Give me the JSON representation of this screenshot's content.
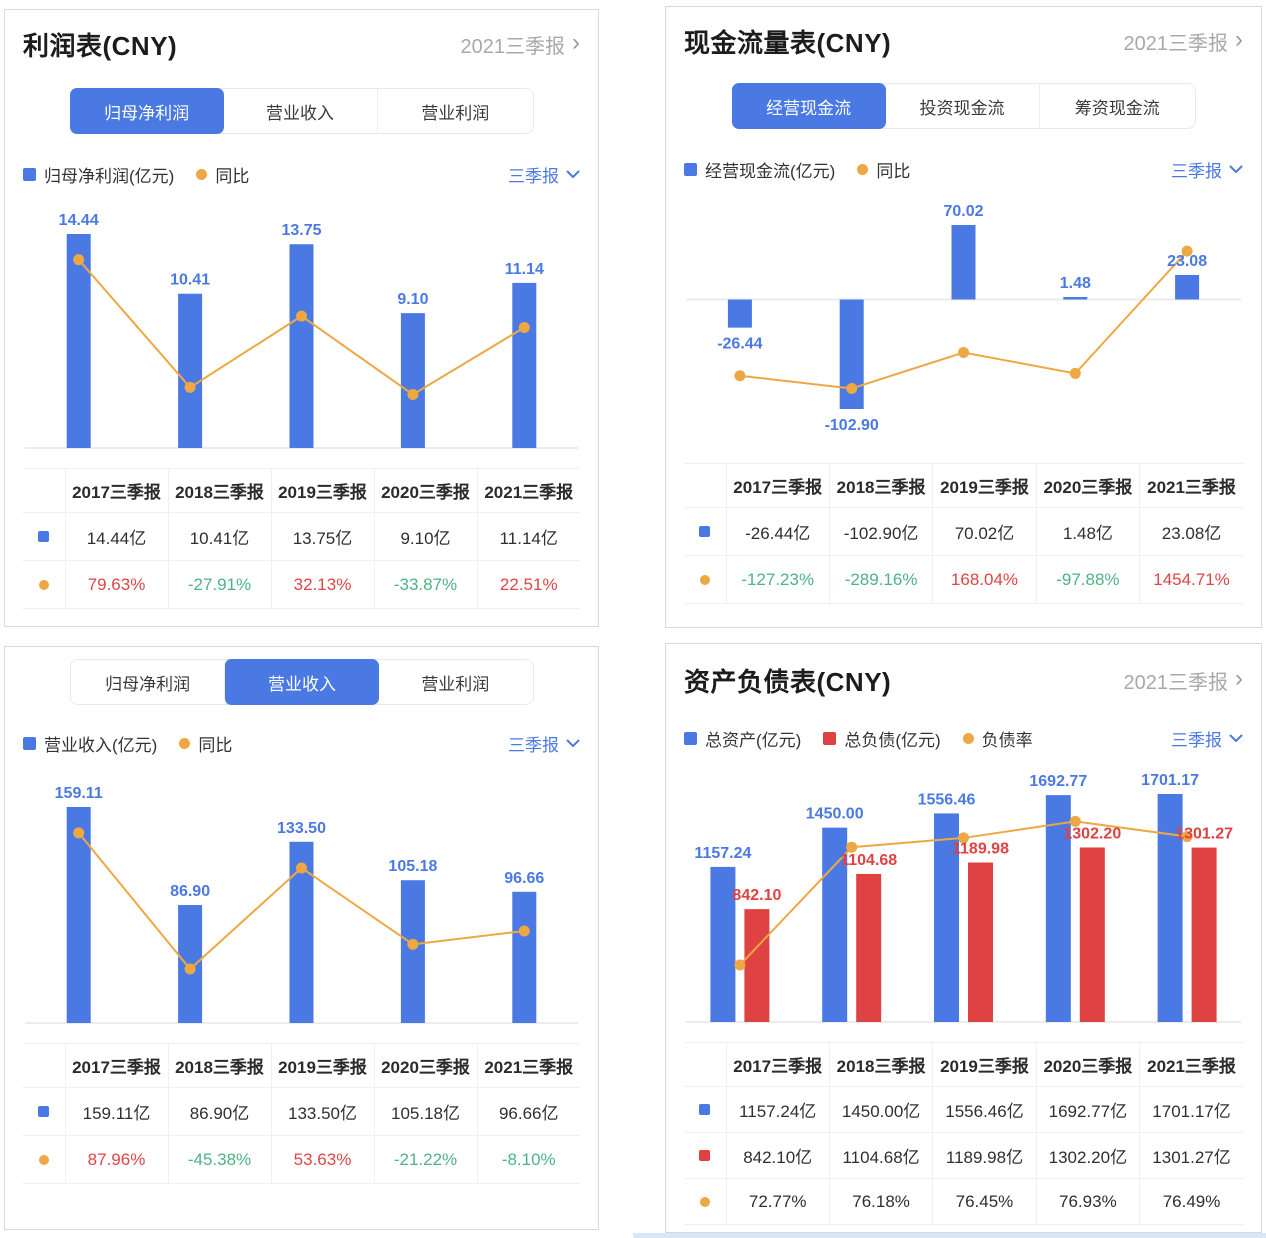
{
  "palette": {
    "blue": "#4b79e3",
    "red_bar": "#df4242",
    "orange": "#eda843",
    "up_color": "#e04444",
    "down_color": "#4fb286"
  },
  "panels": [
    {
      "title": "利润表(CNY)",
      "period_link": "2021三季报",
      "period_select": "三季报",
      "tabs": [
        {
          "label": "归母净利润",
          "active": true
        },
        {
          "label": "营业收入",
          "active": false
        },
        {
          "label": "营业利润",
          "active": false
        }
      ],
      "legend": [
        {
          "label": "归母净利润(亿元)",
          "marker": "square",
          "color": "#4b79e3"
        },
        {
          "label": "同比",
          "marker": "dot",
          "color": "#eda843"
        }
      ],
      "chart_data": {
        "type": "bar-line",
        "categories": [
          "2017三季报",
          "2018三季报",
          "2019三季报",
          "2020三季报",
          "2021三季报"
        ],
        "bars": {
          "name": "归母净利润(亿元)",
          "color": "#4b79e3",
          "values": [
            14.44,
            10.41,
            13.75,
            9.1,
            11.14
          ]
        },
        "line": {
          "name": "同比(%)",
          "color": "#eda843",
          "values": [
            79.63,
            -27.91,
            32.13,
            -33.87,
            22.51
          ]
        }
      },
      "table": {
        "headers": [
          "2017三季报",
          "2018三季报",
          "2019三季报",
          "2020三季报",
          "2021三季报"
        ],
        "rows": [
          {
            "marker": "square",
            "marker_color": "#4b79e3",
            "cells": [
              {
                "t": "14.44亿"
              },
              {
                "t": "10.41亿"
              },
              {
                "t": "13.75亿"
              },
              {
                "t": "9.10亿"
              },
              {
                "t": "11.14亿"
              }
            ]
          },
          {
            "marker": "dot",
            "marker_color": "#eda843",
            "cells": [
              {
                "t": "79.63%",
                "c": "up"
              },
              {
                "t": "-27.91%",
                "c": "down"
              },
              {
                "t": "32.13%",
                "c": "up"
              },
              {
                "t": "-33.87%",
                "c": "down"
              },
              {
                "t": "22.51%",
                "c": "up"
              }
            ]
          }
        ]
      }
    },
    {
      "title": "现金流量表(CNY)",
      "period_link": "2021三季报",
      "period_select": "三季报",
      "tabs": [
        {
          "label": "经营现金流",
          "active": true
        },
        {
          "label": "投资现金流",
          "active": false
        },
        {
          "label": "筹资现金流",
          "active": false
        }
      ],
      "legend": [
        {
          "label": "经营现金流(亿元)",
          "marker": "square",
          "color": "#4b79e3"
        },
        {
          "label": "同比",
          "marker": "dot",
          "color": "#eda843"
        }
      ],
      "chart_data": {
        "type": "bar-line",
        "categories": [
          "2017三季报",
          "2018三季报",
          "2019三季报",
          "2020三季报",
          "2021三季报"
        ],
        "bars": {
          "name": "经营现金流(亿元)",
          "color": "#4b79e3",
          "values": [
            -26.44,
            -102.9,
            70.02,
            1.48,
            23.08
          ]
        },
        "line": {
          "name": "同比(%)",
          "color": "#eda843",
          "values": [
            -127.23,
            -289.16,
            168.04,
            -97.88,
            1454.71
          ]
        }
      },
      "table": {
        "headers": [
          "2017三季报",
          "2018三季报",
          "2019三季报",
          "2020三季报",
          "2021三季报"
        ],
        "rows": [
          {
            "marker": "square",
            "marker_color": "#4b79e3",
            "cells": [
              {
                "t": "-26.44亿"
              },
              {
                "t": "-102.90亿"
              },
              {
                "t": "70.02亿"
              },
              {
                "t": "1.48亿"
              },
              {
                "t": "23.08亿"
              }
            ]
          },
          {
            "marker": "dot",
            "marker_color": "#eda843",
            "cells": [
              {
                "t": "-127.23%",
                "c": "down"
              },
              {
                "t": "-289.16%",
                "c": "down"
              },
              {
                "t": "168.04%",
                "c": "up"
              },
              {
                "t": "-97.88%",
                "c": "down"
              },
              {
                "t": "1454.71%",
                "c": "up"
              }
            ]
          }
        ]
      }
    },
    {
      "period_select": "三季报",
      "tabs": [
        {
          "label": "归母净利润",
          "active": false
        },
        {
          "label": "营业收入",
          "active": true
        },
        {
          "label": "营业利润",
          "active": false
        }
      ],
      "legend": [
        {
          "label": "营业收入(亿元)",
          "marker": "square",
          "color": "#4b79e3"
        },
        {
          "label": "同比",
          "marker": "dot",
          "color": "#eda843"
        }
      ],
      "chart_data": {
        "type": "bar-line",
        "categories": [
          "2017三季报",
          "2018三季报",
          "2019三季报",
          "2020三季报",
          "2021三季报"
        ],
        "bars": {
          "name": "营业收入(亿元)",
          "color": "#4b79e3",
          "values": [
            159.11,
            86.9,
            133.5,
            105.18,
            96.66
          ]
        },
        "line": {
          "name": "同比(%)",
          "color": "#eda843",
          "values": [
            87.96,
            -45.38,
            53.63,
            -21.22,
            -8.1
          ]
        }
      },
      "table": {
        "headers": [
          "2017三季报",
          "2018三季报",
          "2019三季报",
          "2020三季报",
          "2021三季报"
        ],
        "rows": [
          {
            "marker": "square",
            "marker_color": "#4b79e3",
            "cells": [
              {
                "t": "159.11亿"
              },
              {
                "t": "86.90亿"
              },
              {
                "t": "133.50亿"
              },
              {
                "t": "105.18亿"
              },
              {
                "t": "96.66亿"
              }
            ]
          },
          {
            "marker": "dot",
            "marker_color": "#eda843",
            "cells": [
              {
                "t": "87.96%",
                "c": "up"
              },
              {
                "t": "-45.38%",
                "c": "down"
              },
              {
                "t": "53.63%",
                "c": "up"
              },
              {
                "t": "-21.22%",
                "c": "down"
              },
              {
                "t": "-8.10%",
                "c": "down"
              }
            ]
          }
        ]
      }
    },
    {
      "title": "资产负债表(CNY)",
      "period_link": "2021三季报",
      "period_select": "三季报",
      "legend": [
        {
          "label": "总资产(亿元)",
          "marker": "square",
          "color": "#4b79e3"
        },
        {
          "label": "总负债(亿元)",
          "marker": "square",
          "color": "#df4242"
        },
        {
          "label": "负债率",
          "marker": "dot",
          "color": "#eda843"
        }
      ],
      "chart_data": {
        "type": "grouped-bar-line",
        "categories": [
          "2017三季报",
          "2018三季报",
          "2019三季报",
          "2020三季报",
          "2021三季报"
        ],
        "series": [
          {
            "name": "总资产(亿元)",
            "color": "#4b79e3",
            "values": [
              1157.24,
              1450.0,
              1556.46,
              1692.77,
              1701.17
            ]
          },
          {
            "name": "总负债(亿元)",
            "color": "#df4242",
            "values": [
              842.1,
              1104.68,
              1189.98,
              1302.2,
              1301.27
            ]
          }
        ],
        "line": {
          "name": "负债率(%)",
          "color": "#eda843",
          "values": [
            72.77,
            76.18,
            76.45,
            76.93,
            76.49
          ]
        }
      },
      "table": {
        "headers": [
          "2017三季报",
          "2018三季报",
          "2019三季报",
          "2020三季报",
          "2021三季报"
        ],
        "rows": [
          {
            "marker": "square",
            "marker_color": "#4b79e3",
            "cells": [
              {
                "t": "1157.24亿"
              },
              {
                "t": "1450.00亿"
              },
              {
                "t": "1556.46亿"
              },
              {
                "t": "1692.77亿"
              },
              {
                "t": "1701.17亿"
              }
            ]
          },
          {
            "marker": "square",
            "marker_color": "#df4242",
            "cells": [
              {
                "t": "842.10亿"
              },
              {
                "t": "1104.68亿"
              },
              {
                "t": "1189.98亿"
              },
              {
                "t": "1302.20亿"
              },
              {
                "t": "1301.27亿"
              }
            ]
          },
          {
            "marker": "dot",
            "marker_color": "#eda843",
            "cells": [
              {
                "t": "72.77%"
              },
              {
                "t": "76.18%"
              },
              {
                "t": "76.45%"
              },
              {
                "t": "76.93%"
              },
              {
                "t": "76.49%"
              }
            ]
          }
        ]
      }
    }
  ]
}
